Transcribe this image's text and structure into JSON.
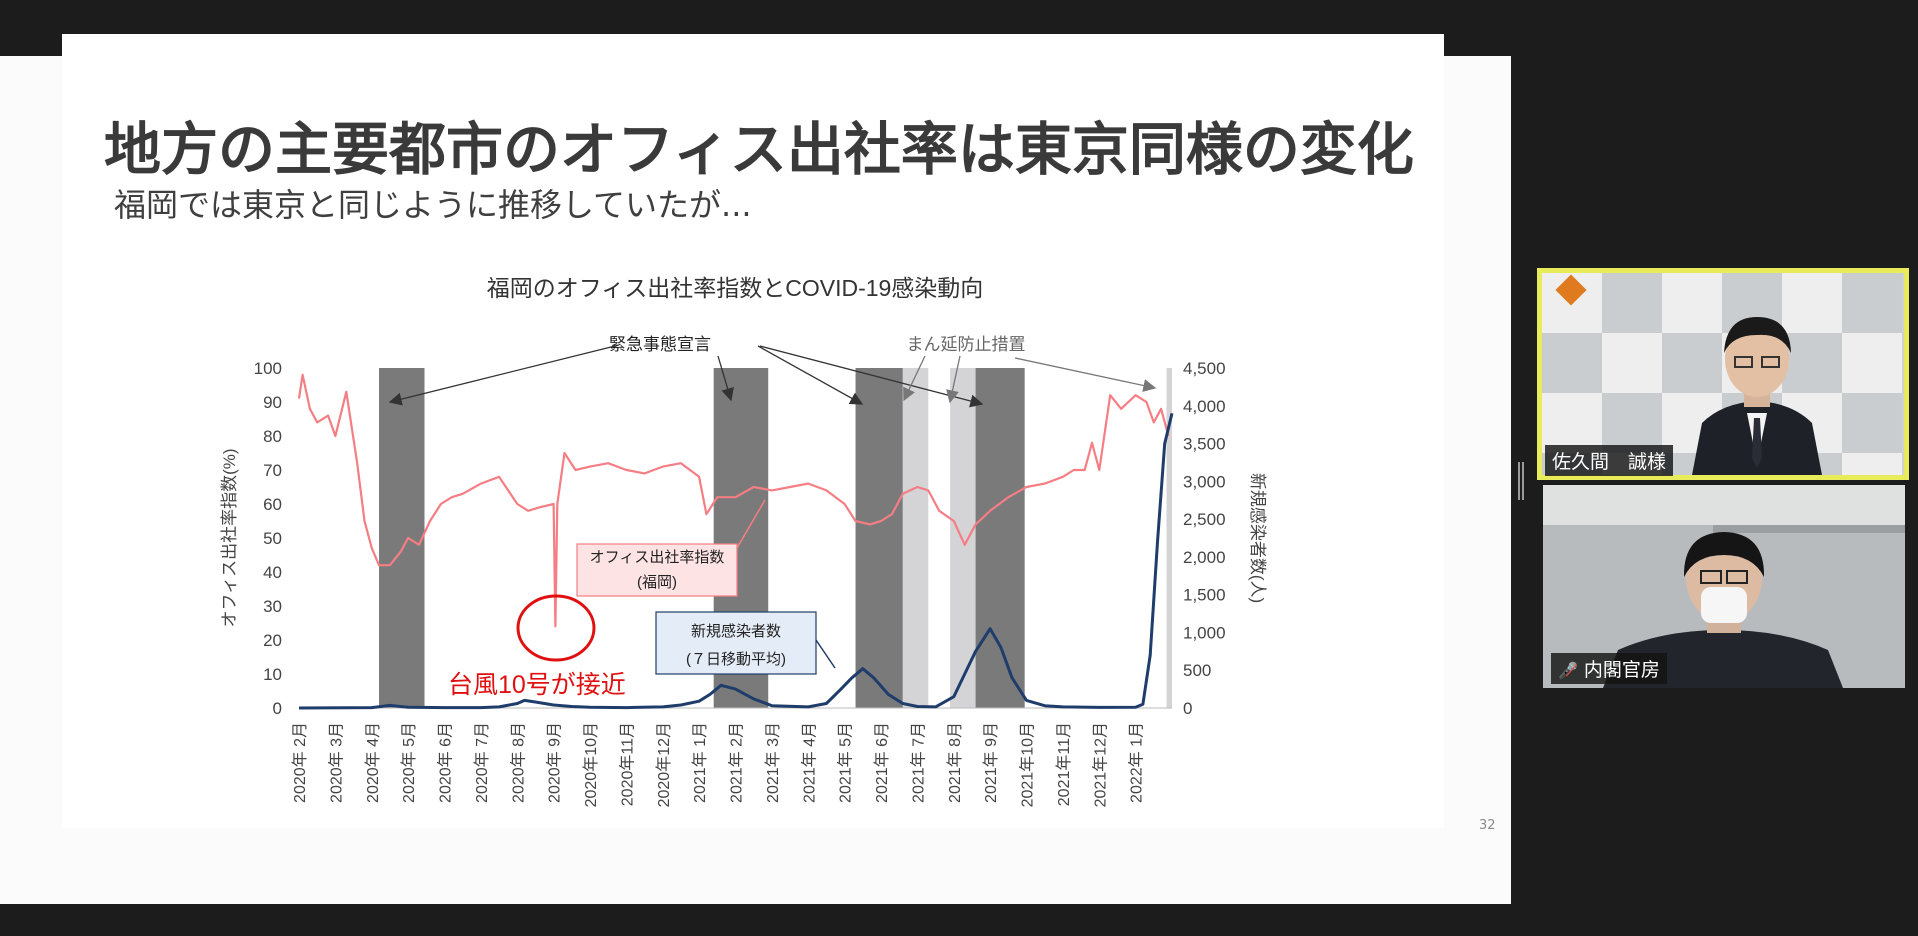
{
  "slide": {
    "title": "地方の主要都市のオフィス出社率は東京同様の変化",
    "subtitle": "福岡では東京と同じように推移していたが...",
    "page_number": "32"
  },
  "participants": [
    {
      "name": "佐久間　誠様",
      "active_speaker": true,
      "muted": false
    },
    {
      "name": "内閣官房",
      "active_speaker": false,
      "muted": true
    }
  ],
  "colors": {
    "office": "#f47e84",
    "covid": "#1f3d6b",
    "emergency": "#7a7a7a",
    "manen": "#d4d4d6",
    "speaker_border": "#e8ec5a"
  },
  "chart_data": {
    "type": "line",
    "title": "福岡のオフィス出社率指数とCOVID-19感染動向",
    "ylabel": "オフィス出社率指数(%)",
    "y2label": "新規感染者数(人)",
    "ylim": [
      0,
      100
    ],
    "y2lim": [
      0,
      4500
    ],
    "yticks": [
      "0",
      "10",
      "20",
      "30",
      "40",
      "50",
      "60",
      "70",
      "80",
      "90",
      "100"
    ],
    "y2ticks": [
      "0",
      "500",
      "1,000",
      "1,500",
      "2,000",
      "2,500",
      "3,000",
      "3,500",
      "4,000",
      "4,500"
    ],
    "months": [
      "2020年 2月",
      "2020年 3月",
      "2020年 4月",
      "2020年 5月",
      "2020年 6月",
      "2020年 7月",
      "2020年 8月",
      "2020年 9月",
      "2020年10月",
      "2020年11月",
      "2020年12月",
      "2021年 1月",
      "2021年 2月",
      "2021年 3月",
      "2021年 4月",
      "2021年 5月",
      "2021年 6月",
      "2021年 7月",
      "2021年 8月",
      "2021年 9月",
      "2021年10月",
      "2021年11月",
      "2021年12月",
      "2022年 1月"
    ],
    "periods": [
      {
        "type": "emergency",
        "from": 2.2,
        "to": 3.45
      },
      {
        "type": "emergency",
        "from": 11.4,
        "to": 12.9
      },
      {
        "type": "emergency",
        "from": 15.3,
        "to": 16.6
      },
      {
        "type": "manen",
        "from": 16.6,
        "to": 17.3
      },
      {
        "type": "manen",
        "from": 17.9,
        "to": 18.6
      },
      {
        "type": "emergency",
        "from": 18.6,
        "to": 19.95
      },
      {
        "type": "manen",
        "from": 23.85,
        "to": 24.0
      }
    ],
    "series": [
      {
        "name": "オフィス出社率指数",
        "name2": "(福岡)",
        "axis": "left",
        "x": [
          0,
          0.1,
          0.3,
          0.5,
          0.8,
          1.0,
          1.3,
          1.6,
          1.8,
          2.0,
          2.2,
          2.5,
          2.8,
          3.0,
          3.3,
          3.6,
          3.9,
          4.2,
          4.5,
          5.0,
          5.5,
          6.0,
          6.3,
          6.6,
          7.0,
          7.05,
          7.1,
          7.3,
          7.6,
          8.0,
          8.5,
          9.0,
          9.5,
          10.0,
          10.5,
          11.0,
          11.2,
          11.5,
          12.0,
          12.5,
          13.0,
          13.5,
          14.0,
          14.5,
          15.0,
          15.3,
          15.7,
          16.0,
          16.3,
          16.6,
          17.0,
          17.3,
          17.6,
          18.0,
          18.3,
          18.6,
          19.0,
          19.5,
          20.0,
          20.5,
          21.0,
          21.3,
          21.6,
          21.8,
          22.0,
          22.3,
          22.6,
          23.0,
          23.3,
          23.5,
          23.7,
          23.9
        ],
        "y": [
          91,
          98,
          88,
          84,
          86,
          80,
          93,
          72,
          55,
          47,
          42,
          42,
          46,
          50,
          48,
          55,
          60,
          62,
          63,
          66,
          68,
          60,
          58,
          59,
          60,
          24,
          60,
          75,
          70,
          71,
          72,
          70,
          69,
          71,
          72,
          68,
          57,
          62,
          62,
          65,
          64,
          65,
          66,
          64,
          60,
          55,
          54,
          55,
          57,
          63,
          65,
          64,
          58,
          55,
          48,
          54,
          58,
          62,
          65,
          66,
          68,
          70,
          70,
          78,
          70,
          92,
          88,
          92,
          90,
          84,
          88,
          80
        ]
      },
      {
        "name": "新規感染者数",
        "name2": "(７日移動平均)",
        "axis": "right",
        "x": [
          0,
          2.0,
          2.5,
          3.0,
          4.0,
          5.0,
          5.5,
          6.0,
          6.2,
          6.5,
          7.0,
          7.5,
          8.0,
          9.0,
          10.0,
          10.5,
          11.0,
          11.3,
          11.6,
          12.0,
          12.5,
          13.0,
          14.0,
          14.5,
          14.9,
          15.2,
          15.5,
          15.8,
          16.2,
          16.6,
          17.0,
          17.5,
          18.0,
          18.3,
          18.6,
          18.8,
          19.0,
          19.3,
          19.6,
          20.0,
          20.5,
          21.0,
          22.0,
          23.0,
          23.2,
          23.4,
          23.6,
          23.8,
          24.0
        ],
        "y": [
          0,
          5,
          35,
          10,
          5,
          5,
          15,
          60,
          100,
          80,
          40,
          20,
          10,
          5,
          15,
          40,
          90,
          180,
          300,
          250,
          120,
          30,
          15,
          60,
          250,
          400,
          520,
          400,
          180,
          60,
          20,
          15,
          150,
          450,
          750,
          900,
          1050,
          800,
          400,
          100,
          30,
          15,
          8,
          10,
          50,
          700,
          2200,
          3500,
          3900
        ]
      }
    ],
    "annotations": {
      "emergency_label": "緊急事態宣言",
      "manen_label": "まん延防止措置",
      "typhoon_label": "台風10号が接近"
    }
  }
}
